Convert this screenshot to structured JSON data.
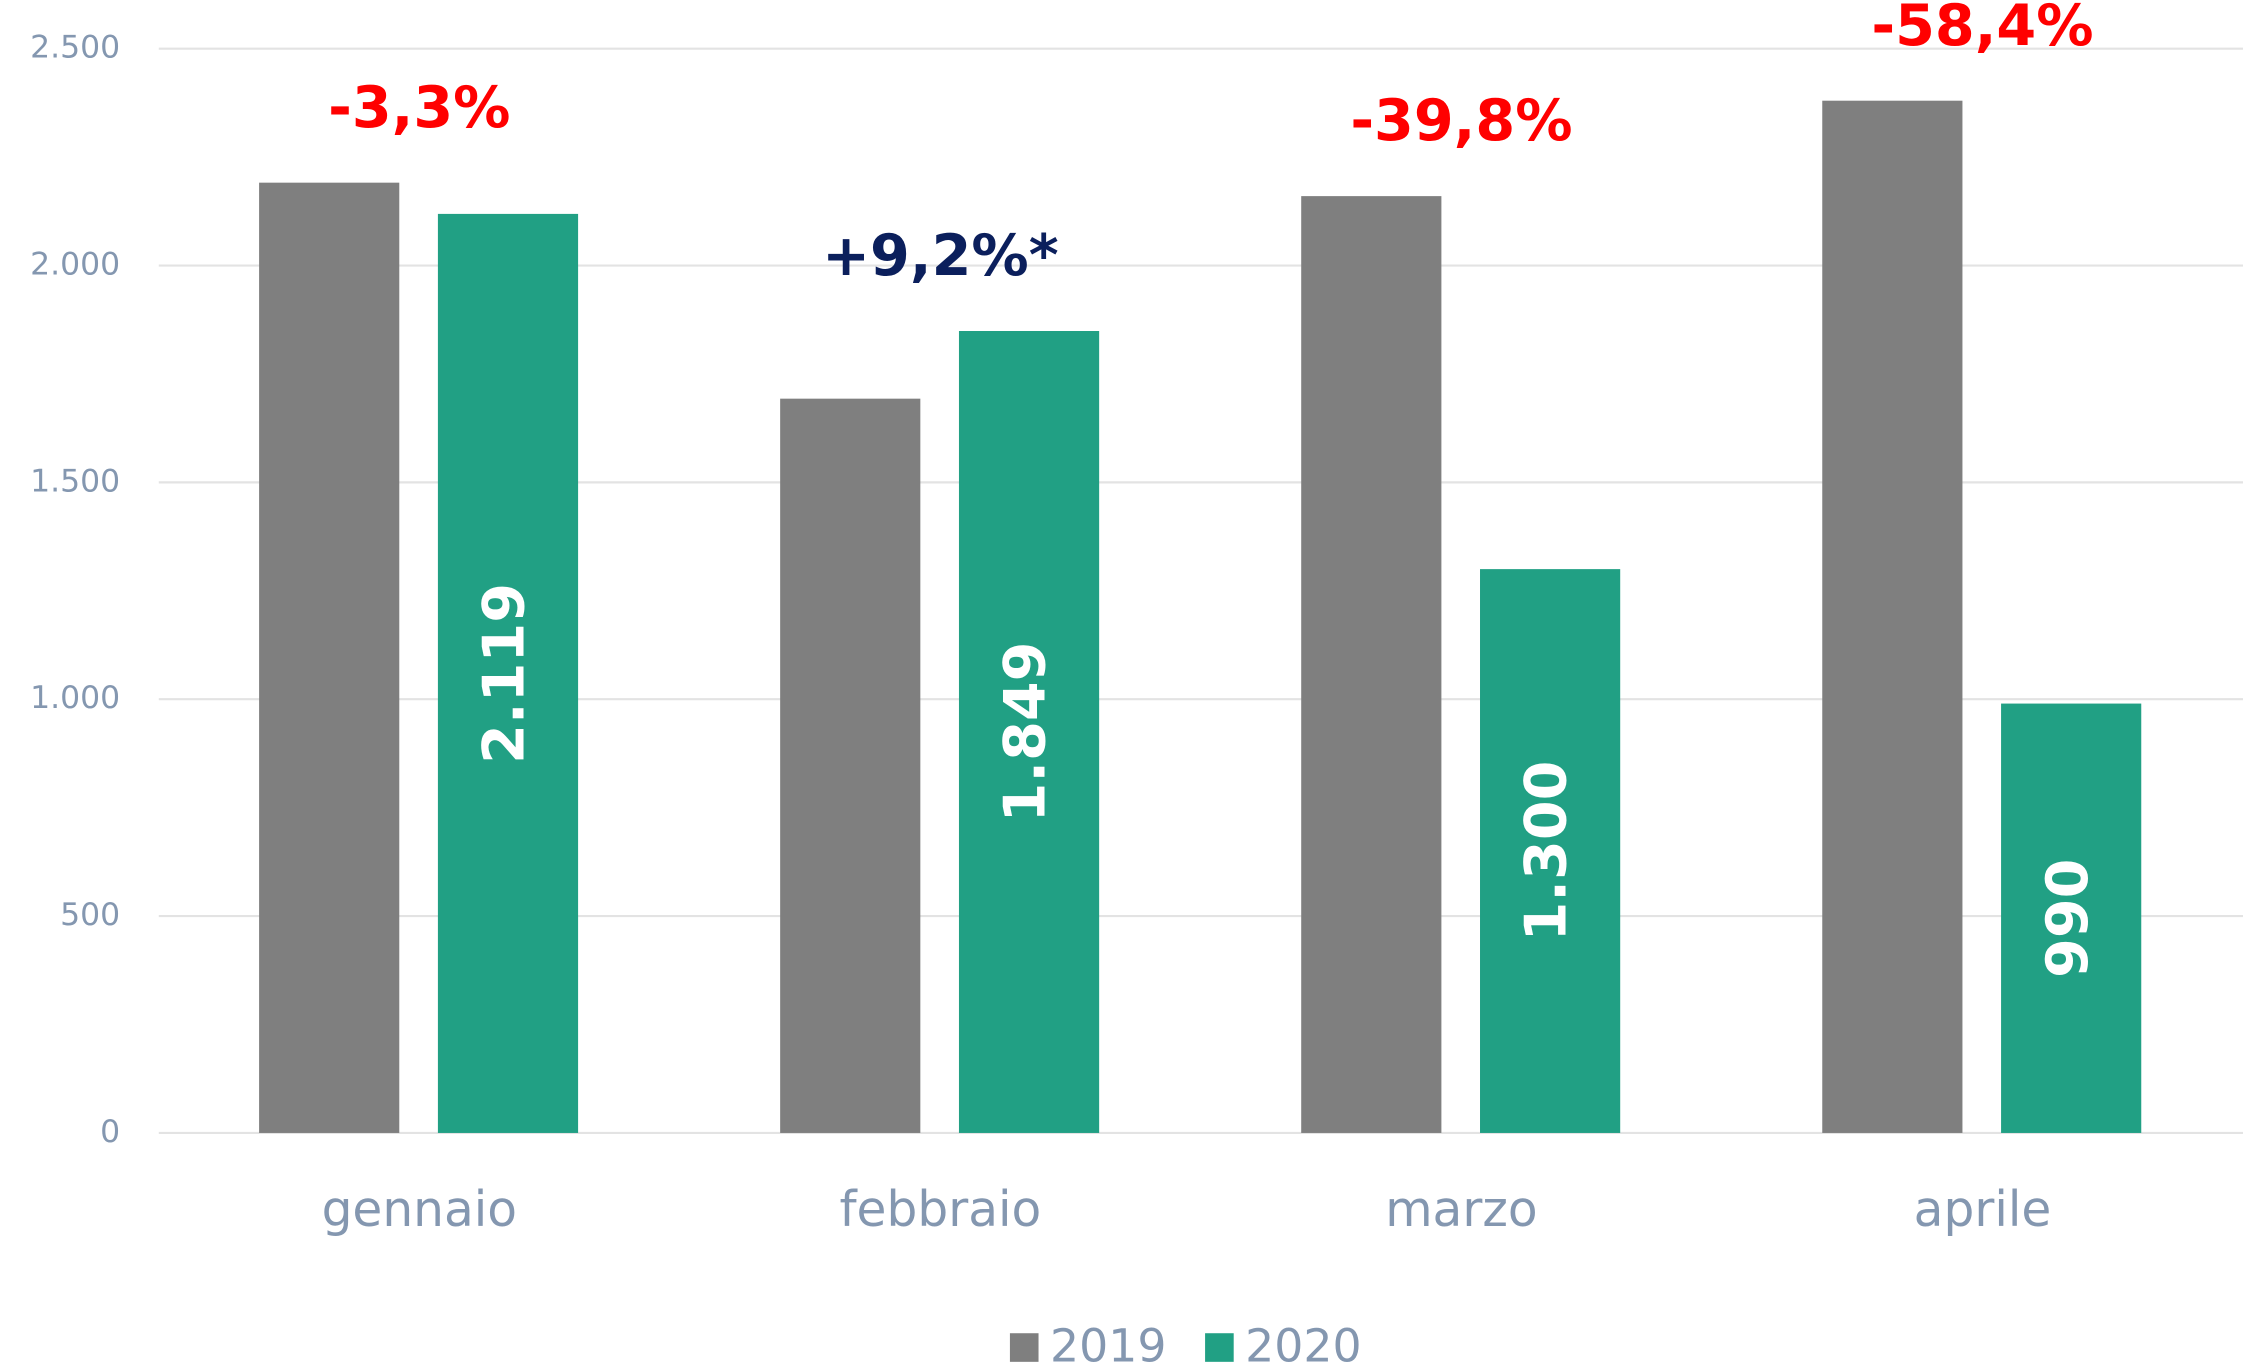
{
  "chart_data": {
    "type": "bar",
    "categories": [
      "gennaio",
      "febbraio",
      "marzo",
      "aprile"
    ],
    "series": [
      {
        "name": "2019",
        "color": "#7f7f7f",
        "values": [
          2191,
          1693,
          2160,
          2380
        ]
      },
      {
        "name": "2020",
        "color": "#21a084",
        "values": [
          2119,
          1849,
          1300,
          990
        ],
        "value_labels": [
          "2.119",
          "1.849",
          "1.300",
          "990"
        ]
      }
    ],
    "annotations": [
      {
        "text": "-3,3%",
        "color": "#ff0000"
      },
      {
        "text": "+9,2%*",
        "color": "#0b1f5c"
      },
      {
        "text": "-39,8%",
        "color": "#ff0000"
      },
      {
        "text": "-58,4%",
        "color": "#ff0000"
      }
    ],
    "ylim": [
      0,
      2500
    ],
    "yticks": [
      0,
      500,
      {
        "value": 1000,
        "label": "1.000"
      },
      {
        "value": 1500,
        "label": "1.500"
      },
      {
        "value": 2000,
        "label": "2.000"
      },
      {
        "value": 2500,
        "label": "2.500"
      }
    ],
    "grid": true,
    "legend": "bottom"
  }
}
